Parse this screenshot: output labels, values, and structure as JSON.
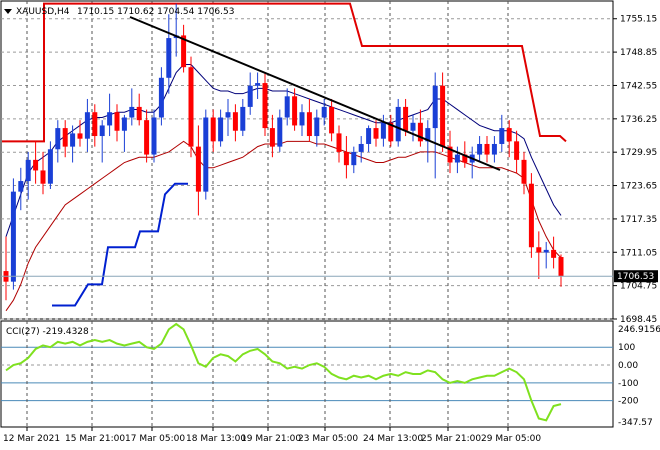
{
  "header": {
    "symbol": "XAUUSD,H4",
    "ohlc": "1710.15 1710.62 1704.54 1706.53"
  },
  "price_axis": {
    "labels": [
      "1755.15",
      "1748.85",
      "1742.55",
      "1736.25",
      "1729.95",
      "1723.65",
      "1717.35",
      "1711.05",
      "1704.75",
      "1698.45"
    ],
    "current": "1706.53"
  },
  "cci_panel": {
    "label": "CCI(27) -219.4328",
    "labels": [
      "246.9156",
      "100",
      "0.00",
      "-100",
      "-200",
      "-347.57"
    ]
  },
  "time_axis": {
    "labels": [
      "12 Mar 2021",
      "15 Mar 21:00",
      "17 Mar 05:00",
      "18 Mar 13:00",
      "19 Mar 21:00",
      "23 Mar 05:00",
      "24 Mar 13:00",
      "25 Mar 21:00",
      "29 Mar 05:00"
    ]
  },
  "colors": {
    "bull": "#1a3fd6",
    "bear": "#ff0000",
    "upper_band": "#00007a",
    "lower_band": "#b00000",
    "sar_red": "#e00000",
    "sar_blue": "#0020d0",
    "cci": "#7fe11f",
    "trendline": "#000000",
    "level": "#4a8ab8"
  },
  "chart_data": [
    {
      "type": "candlestick",
      "title": "XAUUSD,H4",
      "ylim": [
        1698.45,
        1758.5
      ],
      "candles": [
        [
          1707.5,
          1714,
          1702,
          1705.5
        ],
        [
          1705.5,
          1725,
          1704,
          1722.5
        ],
        [
          1722.5,
          1727,
          1719,
          1724.5
        ],
        [
          1724.5,
          1730,
          1721,
          1728.5
        ],
        [
          1728.5,
          1732,
          1724,
          1726.5
        ],
        [
          1726.5,
          1730,
          1722,
          1724
        ],
        [
          1724,
          1732,
          1723,
          1730.5
        ],
        [
          1730.5,
          1736,
          1728,
          1734.5
        ],
        [
          1734.5,
          1736,
          1729,
          1731
        ],
        [
          1731,
          1735,
          1728,
          1733.5
        ],
        [
          1733.5,
          1736,
          1731,
          1732.5
        ],
        [
          1732.5,
          1740,
          1730,
          1737.5
        ],
        [
          1737.5,
          1739,
          1731,
          1733
        ],
        [
          1733,
          1736,
          1728,
          1735
        ],
        [
          1735,
          1741,
          1733,
          1737.5
        ],
        [
          1737.5,
          1739,
          1732,
          1734
        ],
        [
          1734,
          1737,
          1730,
          1736.5
        ],
        [
          1736.5,
          1742,
          1735,
          1738.5
        ],
        [
          1738.5,
          1741,
          1735,
          1736
        ],
        [
          1736,
          1738,
          1728,
          1729.5
        ],
        [
          1729.5,
          1738,
          1728,
          1736.5
        ],
        [
          1736.5,
          1746,
          1735,
          1744
        ],
        [
          1744,
          1756,
          1741,
          1751.5
        ],
        [
          1751.5,
          1758,
          1748,
          1752
        ],
        [
          1752,
          1754,
          1745,
          1746
        ],
        [
          1746,
          1748,
          1729,
          1731
        ],
        [
          1731,
          1735,
          1718,
          1722.5
        ],
        [
          1722.5,
          1738,
          1721,
          1736.5
        ],
        [
          1736.5,
          1738,
          1730,
          1732
        ],
        [
          1732,
          1738,
          1731,
          1736.5
        ],
        [
          1736.5,
          1740,
          1733,
          1737.5
        ],
        [
          1737.5,
          1739,
          1732,
          1734
        ],
        [
          1734,
          1740,
          1733,
          1738.5
        ],
        [
          1738.5,
          1745,
          1737,
          1742.5
        ],
        [
          1742.5,
          1745,
          1740,
          1743
        ],
        [
          1743,
          1745,
          1733,
          1734.5
        ],
        [
          1734.5,
          1737,
          1729,
          1731
        ],
        [
          1731,
          1738,
          1730,
          1736.5
        ],
        [
          1736.5,
          1742,
          1735,
          1740.5
        ],
        [
          1740.5,
          1742,
          1734,
          1735
        ],
        [
          1735,
          1739,
          1733,
          1737.5
        ],
        [
          1737.5,
          1740,
          1732,
          1733
        ],
        [
          1733,
          1738,
          1731,
          1736.5
        ],
        [
          1736.5,
          1740,
          1735,
          1738.5
        ],
        [
          1738.5,
          1740,
          1732,
          1733.5
        ],
        [
          1733.5,
          1735,
          1728,
          1730
        ],
        [
          1730,
          1733,
          1725,
          1727.5
        ],
        [
          1727.5,
          1731,
          1726,
          1730
        ],
        [
          1730,
          1733,
          1728,
          1731.5
        ],
        [
          1731.5,
          1735,
          1730,
          1734.5
        ],
        [
          1734.5,
          1736,
          1731,
          1732.5
        ],
        [
          1732.5,
          1737,
          1731,
          1735.5
        ],
        [
          1735.5,
          1737,
          1731,
          1732
        ],
        [
          1732,
          1740,
          1731,
          1738.5
        ],
        [
          1738.5,
          1740,
          1733,
          1734
        ],
        [
          1734,
          1737,
          1732,
          1735.5
        ],
        [
          1735.5,
          1738,
          1731,
          1732
        ],
        [
          1732,
          1736,
          1728,
          1734.5
        ],
        [
          1734.5,
          1745,
          1725,
          1742.5
        ],
        [
          1742.5,
          1745,
          1730,
          1731
        ],
        [
          1731,
          1734,
          1726,
          1728
        ],
        [
          1728,
          1731,
          1726,
          1729.5
        ],
        [
          1729.5,
          1732,
          1727,
          1728
        ],
        [
          1728,
          1731,
          1725,
          1729.5
        ],
        [
          1729.5,
          1733,
          1728,
          1731.5
        ],
        [
          1731.5,
          1733,
          1728,
          1729.5
        ],
        [
          1729.5,
          1733,
          1728,
          1731.5
        ],
        [
          1731.5,
          1737,
          1730,
          1734.5
        ],
        [
          1734.5,
          1736,
          1729,
          1732
        ],
        [
          1732,
          1734,
          1726,
          1728.5
        ],
        [
          1728.5,
          1730,
          1722,
          1724
        ],
        [
          1724,
          1726,
          1710,
          1712
        ],
        [
          1712,
          1715,
          1706,
          1711
        ],
        [
          1711,
          1713,
          1708,
          1711.5
        ],
        [
          1711.5,
          1714,
          1708,
          1710
        ],
        [
          1710.15,
          1710.62,
          1704.54,
          1706.53
        ]
      ],
      "current_price": 1706.53,
      "upper_band": [
        1714,
        1718,
        1722,
        1726,
        1728,
        1729,
        1730,
        1732,
        1733,
        1734,
        1735,
        1736,
        1736.5,
        1736.5,
        1737,
        1737.5,
        1737.5,
        1738,
        1738,
        1737.5,
        1737.5,
        1739,
        1742,
        1745,
        1746.5,
        1746.5,
        1745,
        1743.5,
        1742,
        1741.5,
        1741.5,
        1741,
        1741,
        1741.5,
        1742,
        1742,
        1741.5,
        1741.5,
        1741.5,
        1741,
        1740.5,
        1740,
        1739.5,
        1739,
        1738.5,
        1738,
        1737.5,
        1737,
        1736.5,
        1736,
        1735.5,
        1735.5,
        1735.5,
        1736,
        1736.5,
        1737,
        1737.5,
        1738,
        1740,
        1740,
        1739,
        1738,
        1737,
        1736,
        1735,
        1734.5,
        1734,
        1734,
        1734,
        1733.5,
        1732.5,
        1729,
        1726,
        1723,
        1720,
        1718
      ],
      "lower_band": [
        1700,
        1702,
        1705,
        1709,
        1712,
        1714,
        1716,
        1718,
        1720,
        1721,
        1722,
        1723,
        1724,
        1725,
        1726,
        1727,
        1728,
        1728.5,
        1729,
        1729,
        1729,
        1729.5,
        1730,
        1731,
        1732,
        1731,
        1728.5,
        1727,
        1727,
        1727.5,
        1728,
        1728.5,
        1729,
        1730,
        1731,
        1731.5,
        1731.5,
        1731.5,
        1732,
        1732,
        1732,
        1732,
        1731.5,
        1731.5,
        1731,
        1730.5,
        1730,
        1729.5,
        1729,
        1728.5,
        1728,
        1728,
        1728.5,
        1729,
        1729,
        1729.5,
        1730,
        1730,
        1730,
        1729.5,
        1729,
        1728.5,
        1728,
        1727.5,
        1727,
        1727,
        1727,
        1727,
        1726.5,
        1726,
        1725,
        1721,
        1717,
        1714,
        1711.5,
        1710
      ]
    },
    {
      "type": "line",
      "title": "CCI(27) -219.4328",
      "ylim": [
        -347.57,
        246.9156
      ],
      "levels": [
        100,
        0,
        -100,
        -200
      ],
      "values": [
        -30,
        0,
        10,
        40,
        90,
        110,
        100,
        130,
        120,
        130,
        110,
        130,
        140,
        130,
        140,
        120,
        110,
        120,
        130,
        100,
        90,
        120,
        200,
        230,
        200,
        110,
        10,
        -10,
        40,
        60,
        50,
        20,
        60,
        80,
        90,
        60,
        20,
        10,
        -20,
        -10,
        -20,
        0,
        10,
        -10,
        -50,
        -70,
        -80,
        -60,
        -70,
        -60,
        -80,
        -60,
        -50,
        -60,
        -40,
        -50,
        -50,
        -30,
        -40,
        -80,
        -100,
        -90,
        -100,
        -80,
        -70,
        -60,
        -60,
        -40,
        -20,
        -40,
        -80,
        -200,
        -300,
        -310,
        -230,
        -219.4328
      ]
    }
  ]
}
